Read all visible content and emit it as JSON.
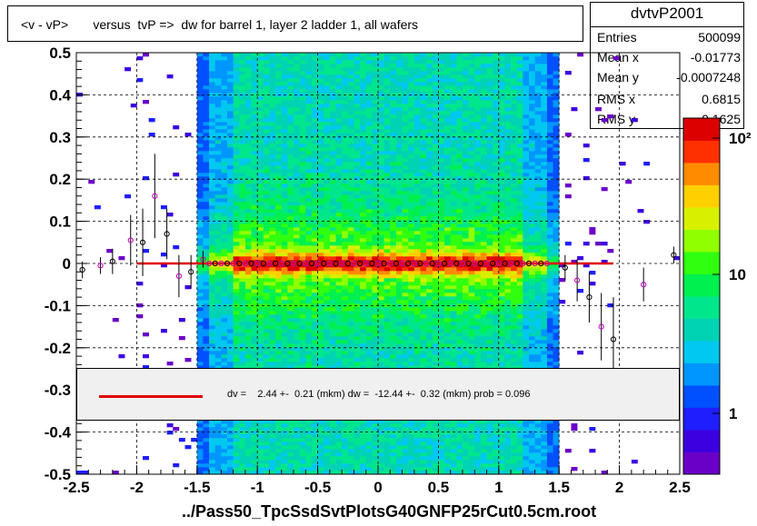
{
  "title": "<v - vP>       versus  tvP =>  dw for barrel 1, layer 2 ladder 1, all wafers",
  "x_axis_title": "../Pass50_TpcSsdSvtPlotsG40GNFP25rCut0.5cm.root",
  "stats": {
    "name": "dvtvP2001",
    "rows": [
      {
        "key": "Entries",
        "value": "500099"
      },
      {
        "key": "Mean x",
        "value": "-0.01773"
      },
      {
        "key": "Mean y",
        "value": "-0.0007248"
      },
      {
        "key": "RMS x",
        "value": "0.6815"
      },
      {
        "key": "RMS y",
        "value": "0.1625"
      }
    ]
  },
  "legend": {
    "text": "dv =    2.44 +-  0.21 (mkm) dw =  -12.44 +-  0.32 (mkm) prob = 0.096",
    "line_color": "#e00000"
  },
  "palette": {
    "labels": [
      "1",
      "10",
      "10²"
    ],
    "colors": [
      "#6a00c8",
      "#3c00e0",
      "#1e1eff",
      "#0050ff",
      "#0096ff",
      "#00c8f0",
      "#00d2b4",
      "#00e68c",
      "#00f050",
      "#30ff10",
      "#90ff00",
      "#d8f000",
      "#ffd000",
      "#ff8c00",
      "#ff3000",
      "#dc0000"
    ]
  },
  "chart_data": {
    "type": "heatmap",
    "title": "<v - vP>       versus  tvP =>  dw for barrel 1, layer 2 ladder 1, all wafers",
    "xlabel": "../Pass50_TpcSsdSvtPlotsG40GNFP25rCut0.5cm.root",
    "ylabel": "",
    "xlim": [
      -2.5,
      2.5
    ],
    "ylim": [
      -0.5,
      0.5
    ],
    "x_ticks": [
      "-2.5",
      "-2",
      "-1.5",
      "-1",
      "-0.5",
      "0",
      "0.5",
      "1",
      "1.5",
      "2",
      "2.5"
    ],
    "y_ticks": [
      "-0.5",
      "-0.4",
      "-0.3",
      "-0.2",
      "-0.1",
      "0",
      "0.1",
      "0.2",
      "0.3",
      "0.4",
      "0.5"
    ],
    "z_scale": "log",
    "grid": true,
    "fit_line": {
      "x": [
        -2.0,
        1.95
      ],
      "y": [
        0.0,
        0.0
      ],
      "color": "#e00000"
    },
    "profile_points": [
      {
        "x": -2.45,
        "y": -0.015,
        "err": 0.02
      },
      {
        "x": -2.3,
        "y": -0.005,
        "err": 0.02
      },
      {
        "x": -2.2,
        "y": 0.005,
        "err": 0.03
      },
      {
        "x": -2.05,
        "y": 0.055,
        "err": 0.06
      },
      {
        "x": -1.95,
        "y": 0.05,
        "err": 0.08
      },
      {
        "x": -1.85,
        "y": 0.16,
        "err": 0.1
      },
      {
        "x": -1.75,
        "y": 0.07,
        "err": 0.06
      },
      {
        "x": -1.65,
        "y": -0.03,
        "err": 0.05
      },
      {
        "x": -1.55,
        "y": -0.02,
        "err": 0.04
      },
      {
        "x": -1.45,
        "y": 0.01,
        "err": 0.02
      },
      {
        "x": 1.55,
        "y": -0.01,
        "err": 0.03
      },
      {
        "x": 1.65,
        "y": -0.04,
        "err": 0.05
      },
      {
        "x": 1.75,
        "y": -0.08,
        "err": 0.06
      },
      {
        "x": 1.85,
        "y": -0.15,
        "err": 0.08
      },
      {
        "x": 1.95,
        "y": -0.18,
        "err": 0.1
      },
      {
        "x": 2.2,
        "y": -0.05,
        "err": 0.04
      },
      {
        "x": 2.45,
        "y": 0.02,
        "err": 0.02
      }
    ]
  }
}
